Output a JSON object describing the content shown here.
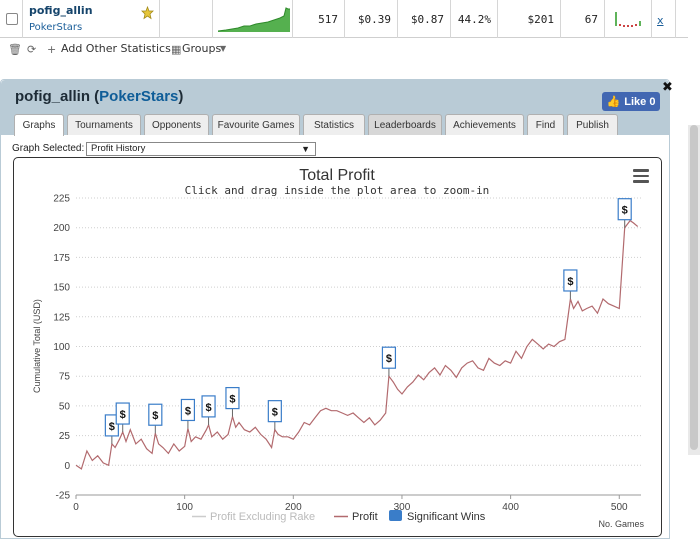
{
  "results_row": {
    "player": "pofig_allin",
    "site": "PokerStars",
    "games": "517",
    "avg_profit": "$0.39",
    "avg_stake": "$0.87",
    "roi": "44.2%",
    "total_profit": "$201",
    "ability": "67",
    "remove_link": "x"
  },
  "toolbar": {
    "add_stats": "Add Other Statistics",
    "groups": "Groups"
  },
  "panel": {
    "player": "pofig_allin",
    "site": "PokerStars",
    "like_label": "Like 0"
  },
  "tabs": [
    {
      "label": "Graphs"
    },
    {
      "label": "Tournaments"
    },
    {
      "label": "Opponents"
    },
    {
      "label": "Favourite Games"
    },
    {
      "label": "Statistics"
    },
    {
      "label": "Leaderboards"
    },
    {
      "label": "Achievements"
    },
    {
      "label": "Find"
    },
    {
      "label": "Publish"
    }
  ],
  "graph_select": {
    "label": "Graph Selected:",
    "value": "Profit History"
  },
  "colors": {
    "profit_line": "#b26a6e",
    "excl_rake_line": "#cccccc",
    "significant": "#3a7dc9",
    "panel_header": "#b9cbd6",
    "like_button": "#4267b2"
  },
  "chart_data": {
    "type": "line",
    "title": "Total Profit",
    "subtitle": "Click and drag inside the plot area to zoom-in",
    "xlabel": "No. Games",
    "ylabel": "Cumulative Total (USD)",
    "xlim": [
      0,
      520
    ],
    "ylim": [
      -25,
      225
    ],
    "xticks": [
      0,
      100,
      200,
      300,
      400,
      500
    ],
    "yticks": [
      -25,
      0,
      25,
      50,
      75,
      100,
      125,
      150,
      175,
      200,
      225
    ],
    "grid": true,
    "legend_position": "bottom",
    "legend": [
      "Profit Excluding Rake",
      "Profit",
      "Significant Wins"
    ],
    "series": [
      {
        "name": "Profit",
        "x": [
          0,
          5,
          10,
          15,
          20,
          25,
          30,
          33,
          36,
          40,
          43,
          46,
          50,
          55,
          60,
          65,
          70,
          73,
          76,
          80,
          85,
          90,
          95,
          100,
          103,
          106,
          110,
          115,
          120,
          122,
          125,
          130,
          135,
          140,
          144,
          147,
          150,
          155,
          160,
          165,
          170,
          175,
          180,
          183,
          186,
          190,
          195,
          200,
          205,
          210,
          215,
          220,
          225,
          230,
          235,
          240,
          245,
          250,
          255,
          260,
          265,
          270,
          275,
          280,
          285,
          288,
          292,
          296,
          300,
          305,
          310,
          315,
          320,
          325,
          330,
          335,
          340,
          345,
          350,
          355,
          360,
          365,
          370,
          375,
          380,
          385,
          390,
          395,
          400,
          405,
          410,
          415,
          420,
          425,
          430,
          435,
          440,
          445,
          450,
          455,
          458,
          462,
          466,
          470,
          475,
          480,
          485,
          490,
          495,
          500,
          505,
          510,
          513,
          517
        ],
        "values": [
          0,
          -3,
          12,
          4,
          8,
          2,
          0,
          18,
          15,
          22,
          28,
          20,
          30,
          18,
          22,
          14,
          10,
          27,
          18,
          15,
          10,
          18,
          12,
          16,
          31,
          20,
          24,
          22,
          30,
          34,
          24,
          28,
          22,
          26,
          41,
          32,
          36,
          30,
          28,
          32,
          26,
          22,
          15,
          30,
          26,
          24,
          24,
          22,
          28,
          36,
          34,
          40,
          46,
          48,
          46,
          46,
          44,
          42,
          44,
          40,
          36,
          40,
          34,
          38,
          44,
          75,
          70,
          64,
          60,
          66,
          70,
          76,
          72,
          78,
          82,
          76,
          84,
          80,
          74,
          82,
          86,
          88,
          82,
          80,
          90,
          86,
          84,
          88,
          86,
          96,
          90,
          100,
          106,
          102,
          98,
          102,
          100,
          104,
          106,
          140,
          132,
          138,
          130,
          132,
          134,
          128,
          140,
          136,
          134,
          132,
          200,
          206,
          204,
          201
        ]
      }
    ],
    "significant_wins": [
      {
        "x": 33,
        "y": 18
      },
      {
        "x": 43,
        "y": 28
      },
      {
        "x": 73,
        "y": 27
      },
      {
        "x": 103,
        "y": 31
      },
      {
        "x": 122,
        "y": 34
      },
      {
        "x": 144,
        "y": 41
      },
      {
        "x": 183,
        "y": 30
      },
      {
        "x": 288,
        "y": 75
      },
      {
        "x": 455,
        "y": 140
      },
      {
        "x": 505,
        "y": 200
      }
    ],
    "marker_label": "$"
  }
}
